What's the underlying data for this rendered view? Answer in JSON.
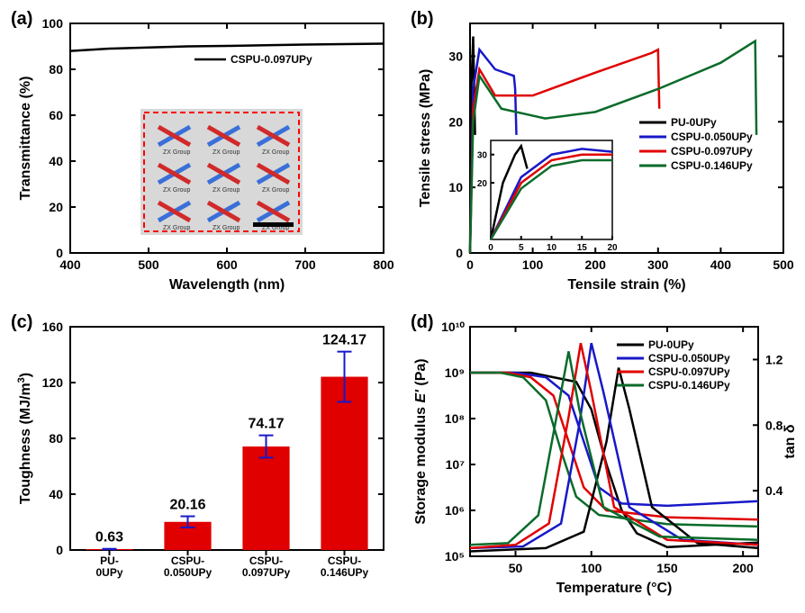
{
  "panels": {
    "a": {
      "label": "(a)",
      "type": "line",
      "xlabel": "Wavelength (nm)",
      "ylabel": "Transmittance (%)",
      "xlim": [
        400,
        800
      ],
      "ylim": [
        0,
        100
      ],
      "xticks": [
        400,
        500,
        600,
        700,
        800
      ],
      "yticks": [
        0,
        20,
        40,
        60,
        80,
        100
      ],
      "series": [
        {
          "name": "CSPU-0.097UPy",
          "color": "#000000",
          "x": [
            400,
            450,
            500,
            550,
            600,
            650,
            700,
            750,
            800
          ],
          "y": [
            88,
            89,
            89.5,
            90,
            90.2,
            90.5,
            90.8,
            91,
            91.2
          ]
        }
      ],
      "inset_photo": {
        "border_color": "#ff0000",
        "grid": "3x3",
        "logo_text": "ZX Group",
        "logo_color_blue": "#3a6fd8",
        "logo_color_red": "#d02a2a",
        "background": "#d8d8d8",
        "scale_bar_color": "#000000"
      }
    },
    "b": {
      "label": "(b)",
      "type": "line",
      "xlabel": "Tensile strain (%)",
      "ylabel": "Tensile stress (MPa)",
      "xlim": [
        0,
        500
      ],
      "ylim": [
        0,
        35
      ],
      "xticks": [
        0,
        100,
        200,
        300,
        400,
        500
      ],
      "yticks": [
        0,
        10,
        20,
        30
      ],
      "series_colors": {
        "PU-0UPy": "#000000",
        "CSPU-0.050UPy": "#1818c8",
        "CSPU-0.097UPy": "#e00000",
        "CSPU-0.146UPy": "#0a6b2a"
      },
      "legend_order": [
        "PU-0UPy",
        "CSPU-0.050UPy",
        "CSPU-0.097UPy",
        "CSPU-0.146UPy"
      ],
      "series": {
        "PU-0UPy": {
          "x": [
            0,
            2,
            5,
            8
          ],
          "y": [
            0,
            25,
            33,
            18
          ]
        },
        "CSPU-0.050UPy": {
          "x": [
            0,
            5,
            15,
            40,
            70,
            72,
            74
          ],
          "y": [
            0,
            25,
            31,
            28,
            27,
            25,
            18
          ]
        },
        "CSPU-0.097UPy": {
          "x": [
            0,
            5,
            15,
            40,
            100,
            200,
            290,
            300,
            302
          ],
          "y": [
            0,
            22,
            28,
            24,
            24,
            27.5,
            30.5,
            31,
            22
          ]
        },
        "CSPU-0.146UPy": {
          "x": [
            0,
            5,
            15,
            50,
            120,
            200,
            300,
            400,
            450,
            455,
            457
          ],
          "y": [
            0,
            20,
            27,
            22,
            20.5,
            21.5,
            25,
            29,
            32,
            32.3,
            18
          ]
        }
      },
      "inset": {
        "xlim": [
          0,
          20
        ],
        "ylim": [
          0,
          35
        ],
        "xticks": [
          0,
          5,
          10,
          15,
          20
        ],
        "yticks": [
          20,
          30
        ],
        "series": {
          "PU-0UPy": {
            "x": [
              0,
              2,
              4,
              5,
              6
            ],
            "y": [
              0,
              20,
              30,
              33,
              25
            ]
          },
          "CSPU-0.050UPy": {
            "x": [
              0,
              5,
              10,
              15,
              20
            ],
            "y": [
              0,
              22,
              30,
              32,
              31
            ]
          },
          "CSPU-0.097UPy": {
            "x": [
              0,
              5,
              10,
              15,
              20
            ],
            "y": [
              0,
              20,
              28,
              30,
              30
            ]
          },
          "CSPU-0.146UPy": {
            "x": [
              0,
              5,
              10,
              15,
              20
            ],
            "y": [
              0,
              18,
              26,
              28,
              28
            ]
          }
        }
      }
    },
    "c": {
      "label": "(c)",
      "type": "bar",
      "xlabel": "",
      "ylabel": "Toughness (MJ/m³)",
      "ylim": [
        0,
        160
      ],
      "yticks": [
        0,
        40,
        80,
        120,
        160
      ],
      "categories": [
        "PU-\n0UPy",
        "CSPU-\n0.050UPy",
        "CSPU-\n0.097UPy",
        "CSPU-\n0.146UPy"
      ],
      "values": [
        0.63,
        20.16,
        74.17,
        124.17
      ],
      "errors": [
        0.2,
        4,
        8,
        18
      ],
      "value_labels": [
        "0.63",
        "20.16",
        "74.17",
        "124.17"
      ],
      "bar_color": "#e00000",
      "error_color": "#1818c8",
      "bar_width": 0.6
    },
    "d": {
      "label": "(d)",
      "type": "line-dual-y",
      "xlabel": "Temperature (°C)",
      "ylabel_left": "Storage modulus E' (Pa)",
      "ylabel_right": "tan δ",
      "xlim": [
        20,
        210
      ],
      "xticks": [
        50,
        100,
        150,
        200
      ],
      "ylim_left_log": [
        5,
        10
      ],
      "yticks_left_labels": [
        "10⁵",
        "10⁶",
        "10⁷",
        "10⁸",
        "10⁹",
        "10¹⁰"
      ],
      "ylim_right": [
        0,
        1.4
      ],
      "yticks_right": [
        0.4,
        0.8,
        1.2
      ],
      "series_colors": {
        "PU-0UPy": "#000000",
        "CSPU-0.050UPy": "#1818c8",
        "CSPU-0.097UPy": "#e00000",
        "CSPU-0.146UPy": "#0a6b2a"
      },
      "legend_order": [
        "PU-0UPy",
        "CSPU-0.050UPy",
        "CSPU-0.097UPy",
        "CSPU-0.146UPy"
      ],
      "storage": {
        "PU-0UPy": {
          "x": [
            20,
            60,
            90,
            100,
            110,
            120,
            130,
            150,
            210
          ],
          "y": [
            9.0,
            9.0,
            8.8,
            8.2,
            7.0,
            6.0,
            5.5,
            5.2,
            5.3
          ]
        },
        "CSPU-0.050UPy": {
          "x": [
            20,
            50,
            70,
            85,
            95,
            105,
            120,
            150,
            210
          ],
          "y": [
            9.0,
            9.0,
            8.9,
            8.5,
            7.5,
            6.5,
            6.15,
            6.1,
            6.2
          ]
        },
        "CSPU-0.097UPy": {
          "x": [
            20,
            45,
            60,
            75,
            85,
            95,
            110,
            150,
            210
          ],
          "y": [
            9.0,
            9.0,
            8.9,
            8.5,
            7.5,
            6.5,
            6.0,
            5.85,
            5.8
          ]
        },
        "CSPU-0.146UPy": {
          "x": [
            20,
            40,
            55,
            70,
            80,
            90,
            105,
            150,
            210
          ],
          "y": [
            9.0,
            9.0,
            8.9,
            8.4,
            7.3,
            6.3,
            5.9,
            5.7,
            5.65
          ]
        }
      },
      "tandelta": {
        "PU-0UPy": {
          "x": [
            20,
            70,
            95,
            110,
            118,
            125,
            140,
            170,
            210
          ],
          "y": [
            0.03,
            0.05,
            0.15,
            0.7,
            1.15,
            0.9,
            0.3,
            0.08,
            0.05
          ]
        },
        "CSPU-0.050UPy": {
          "x": [
            20,
            55,
            80,
            92,
            100,
            108,
            125,
            160,
            210
          ],
          "y": [
            0.05,
            0.06,
            0.2,
            0.8,
            1.3,
            1.0,
            0.3,
            0.1,
            0.07
          ]
        },
        "CSPU-0.097UPy": {
          "x": [
            20,
            50,
            72,
            85,
            93,
            100,
            115,
            150,
            210
          ],
          "y": [
            0.05,
            0.07,
            0.2,
            0.85,
            1.3,
            1.0,
            0.3,
            0.1,
            0.07
          ]
        },
        "CSPU-0.146UPy": {
          "x": [
            20,
            45,
            65,
            78,
            85,
            92,
            108,
            145,
            210
          ],
          "y": [
            0.07,
            0.08,
            0.25,
            0.9,
            1.25,
            0.9,
            0.3,
            0.12,
            0.1
          ]
        }
      }
    }
  }
}
